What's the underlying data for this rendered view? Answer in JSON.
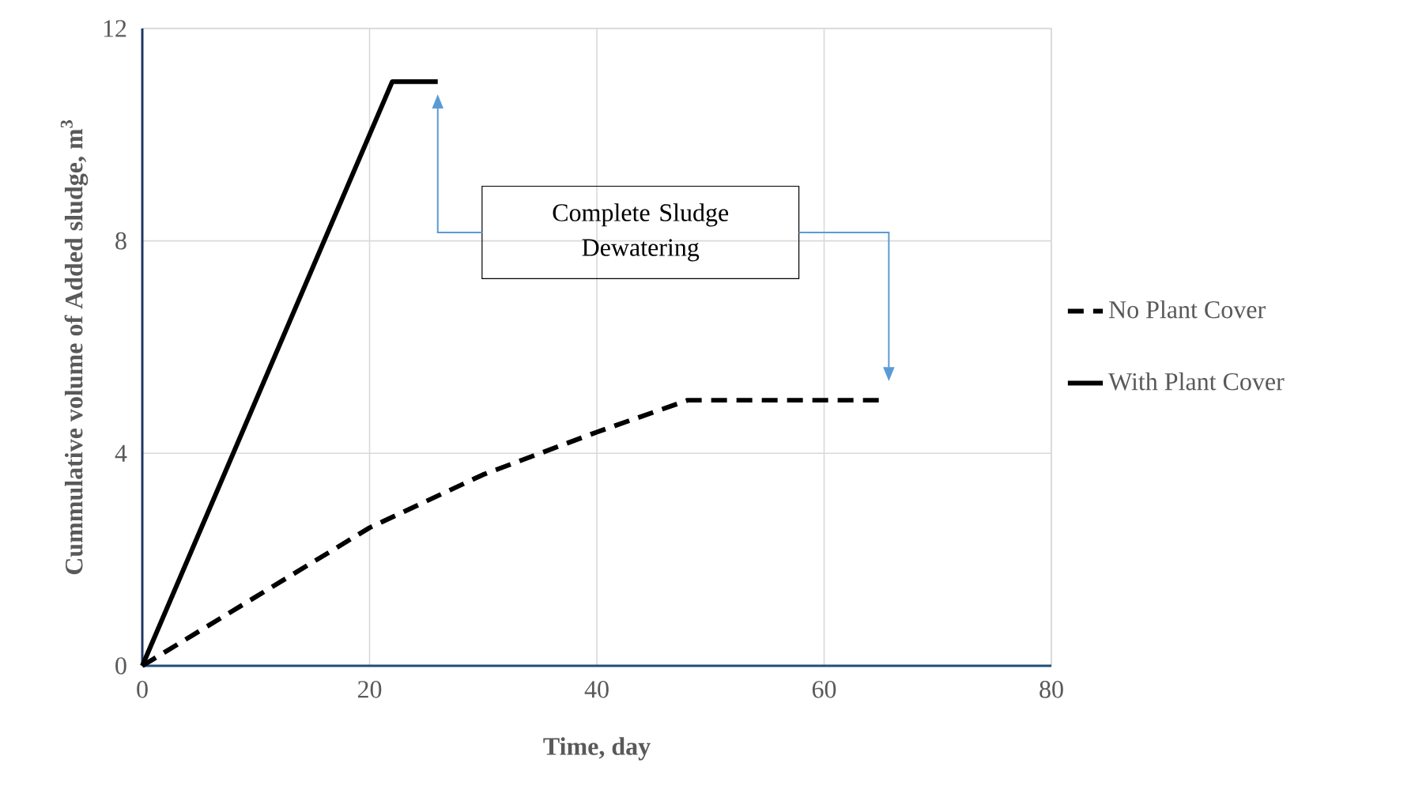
{
  "chart_data": {
    "type": "line",
    "xlabel": "Time, day",
    "ylabel": "Cummulative volume of Added sludge, m$^{3}$",
    "series": [
      {
        "name": "No Plant Cover",
        "color": "#000000",
        "line_style": "dashed",
        "x": [
          0,
          10,
          20,
          30,
          40,
          48,
          65
        ],
        "values": [
          0,
          1.3,
          2.6,
          3.6,
          4.4,
          5,
          5
        ]
      },
      {
        "name": "With Plant Cover",
        "color": "#000000",
        "line_style": "solid",
        "x": [
          0,
          22,
          26
        ],
        "values": [
          0,
          11,
          11
        ]
      }
    ],
    "xlim": [
      0,
      80
    ],
    "xticks": [
      0,
      20,
      40,
      60,
      80
    ],
    "ylim": [
      0,
      12
    ],
    "yticks": [
      0,
      4,
      8,
      12
    ],
    "grid": true,
    "legend": "right",
    "marker": "none",
    "annotations": [
      "Complete Sludge Dewatering"
    ]
  }
}
